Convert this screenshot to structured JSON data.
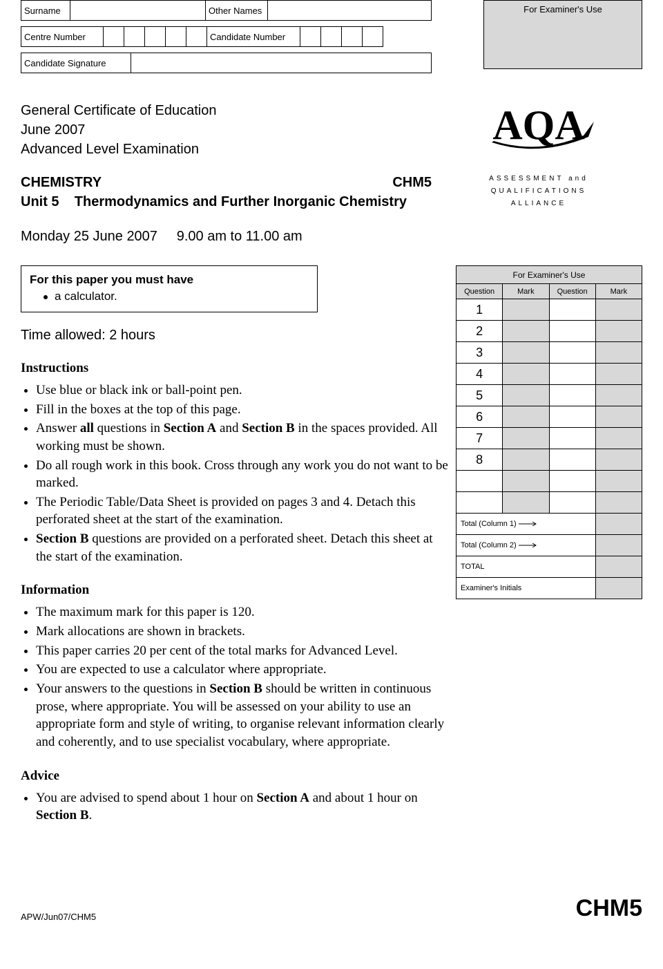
{
  "header": {
    "surname_label": "Surname",
    "other_names_label": "Other Names",
    "centre_number_label": "Centre Number",
    "candidate_number_label": "Candidate Number",
    "candidate_signature_label": "Candidate Signature",
    "examiner_use_label": "For Examiner's Use"
  },
  "title": {
    "line1": "General Certificate of Education",
    "line2": "June 2007",
    "line3": "Advanced Level Examination",
    "subject": "CHEMISTRY",
    "unit_code": "CHM5",
    "unit_title": "Unit 5    Thermodynamics and Further Inorganic Chemistry",
    "date": "Monday 25 June 2007     9.00 am to 11.00 am"
  },
  "logo": {
    "main": "AQA",
    "sub1": "ASSESSMENT and",
    "sub2": "QUALIFICATIONS",
    "sub3": "ALLIANCE"
  },
  "must_have": {
    "title": "For this paper you must have",
    "items": [
      "a calculator."
    ]
  },
  "time_allowed": "Time allowed: 2 hours",
  "sections": {
    "instructions_head": "Instructions",
    "instructions": [
      "Use blue or black ink or ball-point pen.",
      "Fill in the boxes at the top of this page.",
      "Answer <b>all</b> questions in <b>Section A</b> and <b>Section B</b> in the spaces provided. All working must be shown.",
      "Do all rough work in this book.  Cross through any work you do not want to be marked.",
      "The Periodic Table/Data Sheet is provided on pages 3 and 4.  Detach this perforated sheet at the start of the examination.",
      "<b>Section B</b> questions are provided on a perforated sheet.  Detach this sheet at the start of the examination."
    ],
    "information_head": "Information",
    "information": [
      "The maximum mark for this paper is 120.",
      "Mark allocations are shown in brackets.",
      "This paper carries 20 per cent of the total marks for Advanced Level.",
      "You are expected to use a calculator where appropriate.",
      "Your answers to the questions in <b>Section B</b> should be written in continuous prose, where appropriate.  You will be assessed on your ability to use an appropriate form and style of writing, to organise relevant information clearly and coherently, and to use specialist vocabulary, where appropriate."
    ],
    "advice_head": "Advice",
    "advice": [
      "You are advised to spend about 1 hour on <b>Section A</b> and about 1 hour on <b>Section B</b>."
    ]
  },
  "marks_table": {
    "title": "For Examiner's Use",
    "col_headers": [
      "Question",
      "Mark",
      "Question",
      "Mark"
    ],
    "questions": [
      "1",
      "2",
      "3",
      "4",
      "5",
      "6",
      "7",
      "8"
    ],
    "blank_rows": 2,
    "totals": [
      "Total (Column 1)",
      "Total (Column 2)",
      "TOTAL",
      "Examiner's Initials"
    ]
  },
  "footer": {
    "left": "APW/Jun07/CHM5",
    "right": "CHM5"
  },
  "colors": {
    "grey_fill": "#d8d8d8",
    "border": "#000000",
    "text": "#000000",
    "background": "#ffffff"
  },
  "typography": {
    "body_font": "Arial",
    "serif_font": "Times New Roman",
    "title_fontsize": 20,
    "body_fontsize": 15,
    "list_fontsize": 19,
    "logo_fontsize": 58,
    "footer_code_fontsize": 34
  }
}
